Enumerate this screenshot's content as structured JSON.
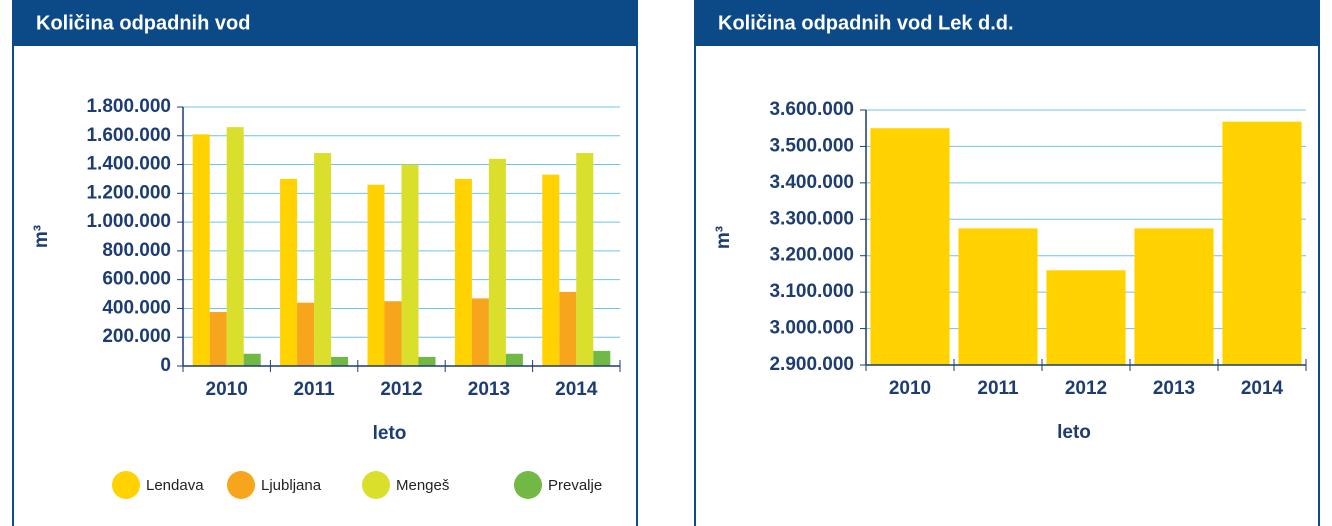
{
  "chart_data": [
    {
      "type": "bar",
      "title": "Količina odpadnih vod",
      "y_label": "m³",
      "x_label": "leto",
      "categories": [
        "2010",
        "2011",
        "2012",
        "2013",
        "2014"
      ],
      "series": [
        {
          "name": "Lendava",
          "color": "#ffd200",
          "values": [
            1610000,
            1300000,
            1260000,
            1300000,
            1330000
          ]
        },
        {
          "name": "Ljubljana",
          "color": "#f7a51c",
          "values": [
            375000,
            440000,
            450000,
            470000,
            515000
          ]
        },
        {
          "name": "Mengeš",
          "color": "#d9df2a",
          "values": [
            1660000,
            1480000,
            1400000,
            1440000,
            1480000
          ]
        },
        {
          "name": "Prevalje",
          "color": "#72b844",
          "values": [
            85000,
            63000,
            63000,
            85000,
            105000
          ]
        }
      ],
      "ylim": [
        0,
        1800000
      ],
      "yticks": [
        0,
        {
          "value": 200000,
          "label": "200.000"
        },
        {
          "value": 400000,
          "label": "400.000"
        },
        {
          "value": 600000,
          "label": "600.000"
        },
        {
          "value": 800000,
          "label": "800.000"
        },
        {
          "value": 1000000,
          "label": "1.000.000"
        },
        {
          "value": 1200000,
          "label": "1.200.000"
        },
        {
          "value": 1400000,
          "label": "1.400.000"
        },
        {
          "value": 1600000,
          "label": "1.600.000"
        },
        {
          "value": 1800000,
          "label": "1.800.000"
        }
      ],
      "grid": true
    },
    {
      "type": "bar",
      "title": "Količina odpadnih vod Lek d.d.",
      "y_label": "m³",
      "x_label": "leto",
      "categories": [
        "2010",
        "2011",
        "2012",
        "2013",
        "2014"
      ],
      "series": [
        {
          "name": "Lek d.d.",
          "color": "#ffd200",
          "values": [
            3550000,
            3275000,
            3160000,
            3275000,
            3568000
          ]
        }
      ],
      "ylim": [
        2900000,
        3600000
      ],
      "yticks": [
        {
          "value": 2900000,
          "label": "2.900.000"
        },
        {
          "value": 3000000,
          "label": "3.000.000"
        },
        {
          "value": 3100000,
          "label": "3.100.000"
        },
        {
          "value": 3200000,
          "label": "3.200.000"
        },
        {
          "value": 3300000,
          "label": "3.300.000"
        },
        {
          "value": 3400000,
          "label": "3.400.000"
        },
        {
          "value": 3500000,
          "label": "3.500.000"
        },
        {
          "value": 3600000,
          "label": "3.600.000"
        }
      ],
      "grid": true
    }
  ]
}
